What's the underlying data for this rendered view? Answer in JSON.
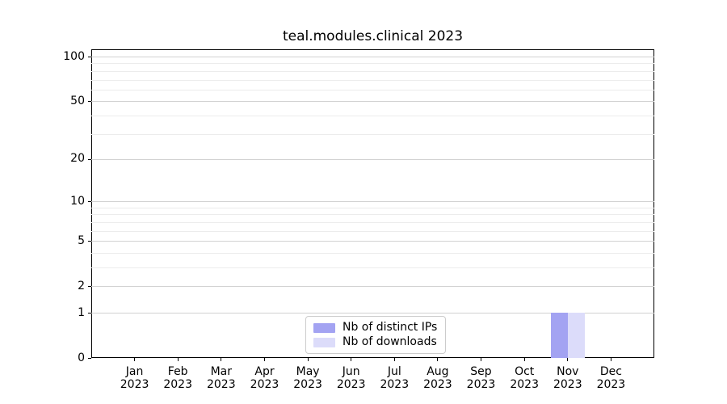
{
  "chart_data": {
    "type": "bar",
    "title": "teal.modules.clinical 2023",
    "x": {
      "months": [
        "Jan",
        "Feb",
        "Mar",
        "Apr",
        "May",
        "Jun",
        "Jul",
        "Aug",
        "Sep",
        "Oct",
        "Nov",
        "Dec"
      ],
      "year": "2023"
    },
    "series": [
      {
        "name": "Nb of distinct IPs",
        "color": "#a3a3f2",
        "values": [
          0,
          0,
          0,
          0,
          0,
          0,
          0,
          0,
          0,
          0,
          1,
          0
        ]
      },
      {
        "name": "Nb of downloads",
        "color": "#dcdcfa",
        "values": [
          0,
          0,
          0,
          0,
          0,
          0,
          0,
          0,
          0,
          0,
          1,
          0
        ]
      }
    ],
    "y_axis": {
      "scale": "log10(1+v)",
      "tick_values": [
        0,
        1,
        2,
        5,
        10,
        20,
        50,
        100
      ],
      "tick_labels": [
        "0",
        "1",
        "2",
        "5",
        "10",
        "20",
        "50",
        "100"
      ],
      "minor_gridline_values": [
        3,
        4,
        6,
        7,
        8,
        9,
        30,
        40,
        60,
        70,
        80,
        90
      ],
      "ylim": [
        0,
        113
      ]
    },
    "legend": {
      "position": "lower center"
    },
    "grid": "horizontal",
    "colors": {
      "spine": "#000000",
      "major_grid": "#d2d2d2",
      "minor_grid": "#ececec",
      "background": "#ffffff",
      "text": "#000000"
    }
  }
}
